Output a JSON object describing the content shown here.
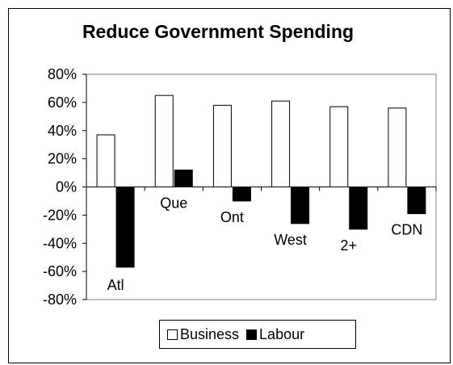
{
  "chart_data": {
    "type": "bar",
    "title": "Reduce Government Spending",
    "categories": [
      "Atl",
      "Que",
      "Ont",
      "West",
      "2+",
      "CDN"
    ],
    "series": [
      {
        "name": "Business",
        "values": [
          37,
          65,
          58,
          61,
          57,
          56
        ],
        "color": "#ffffff"
      },
      {
        "name": "Labour",
        "values": [
          -57,
          12,
          -10,
          -26,
          -30,
          -19
        ],
        "color": "#000000"
      }
    ],
    "y_ticks": [
      "80%",
      "60%",
      "40%",
      "20%",
      "0%",
      "-20%",
      "-40%",
      "-60%",
      "-80%"
    ],
    "ylim": [
      -80,
      80
    ],
    "xlabel": "",
    "ylabel": "",
    "legend_position": "bottom",
    "grid": false
  }
}
